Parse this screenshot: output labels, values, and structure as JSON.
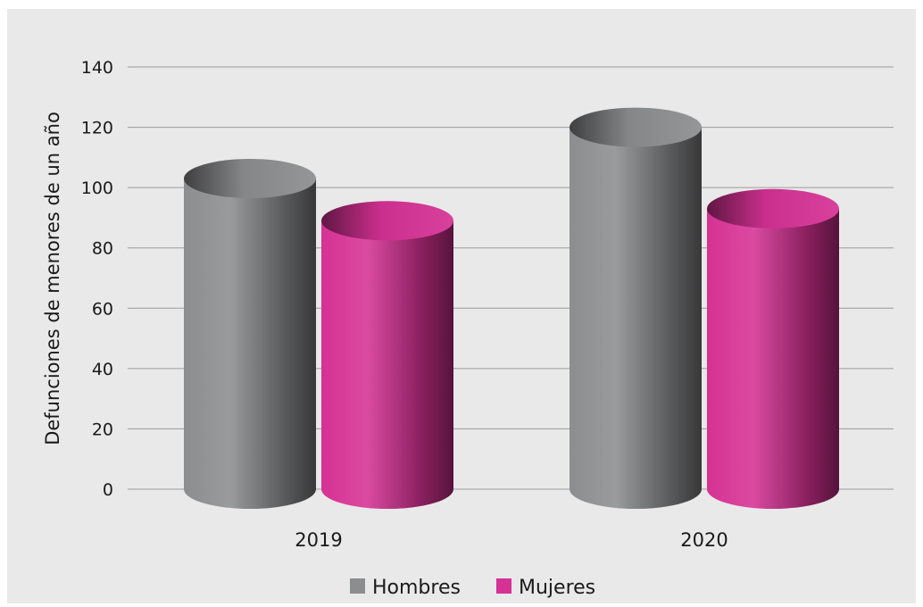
{
  "chart_data": {
    "type": "bar",
    "categories": [
      "2019",
      "2020"
    ],
    "series": [
      {
        "name": "Hombres",
        "values": [
          103,
          120
        ],
        "color": "#8c8d8f"
      },
      {
        "name": "Mujeres",
        "values": [
          89,
          93
        ],
        "color": "#d63194"
      }
    ],
    "xlabel": "",
    "ylabel": "Defunciones de menores de un año",
    "ylim": [
      0,
      140
    ],
    "yticks": [
      "0",
      "20",
      "40",
      "60",
      "80",
      "100",
      "120",
      "140"
    ],
    "grid": true,
    "legend_position": "bottom-center",
    "style": "3d-cylinder"
  }
}
